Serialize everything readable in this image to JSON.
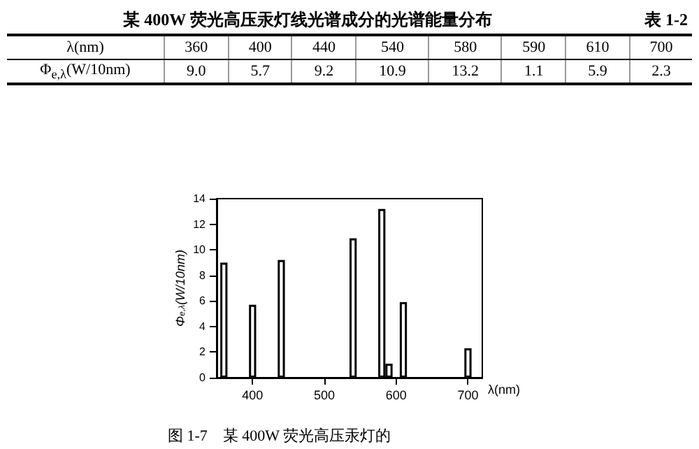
{
  "chart_data": [
    {
      "type": "other",
      "title": "某 400W 荧光高压汞灯线光谱成分的光谱能量分布",
      "annotations": [
        "表 1-2"
      ],
      "xlabel": "λ(nm)",
      "ylabel": "Φ$_{e,λ}$(W/10nm)",
      "categories": [
        "360",
        "400",
        "440",
        "540",
        "580",
        "590",
        "610",
        "700"
      ],
      "value_labels": [
        "9.0",
        "5.7",
        "9.2",
        "10.9",
        "13.2",
        "1.1",
        "5.9",
        "2.3"
      ]
    },
    {
      "type": "bar",
      "annotations": [
        "图 1-7　某 400W 荧光高压汞灯的"
      ],
      "xlabel": "λ(nm)",
      "ylabel": "Φ$_{e,λ}$(W/10nm)",
      "x": [
        360,
        400,
        440,
        540,
        580,
        590,
        610,
        700
      ],
      "values": [
        9.0,
        5.7,
        9.2,
        10.9,
        13.2,
        1.1,
        5.9,
        2.3
      ],
      "color": "#000000",
      "xlim": [
        350,
        720
      ],
      "xticks": [
        400,
        500,
        600,
        700
      ],
      "ylim": [
        0,
        14
      ],
      "yticks": [
        0,
        2,
        4,
        6,
        8,
        10,
        12,
        14
      ],
      "grid": false
    }
  ]
}
